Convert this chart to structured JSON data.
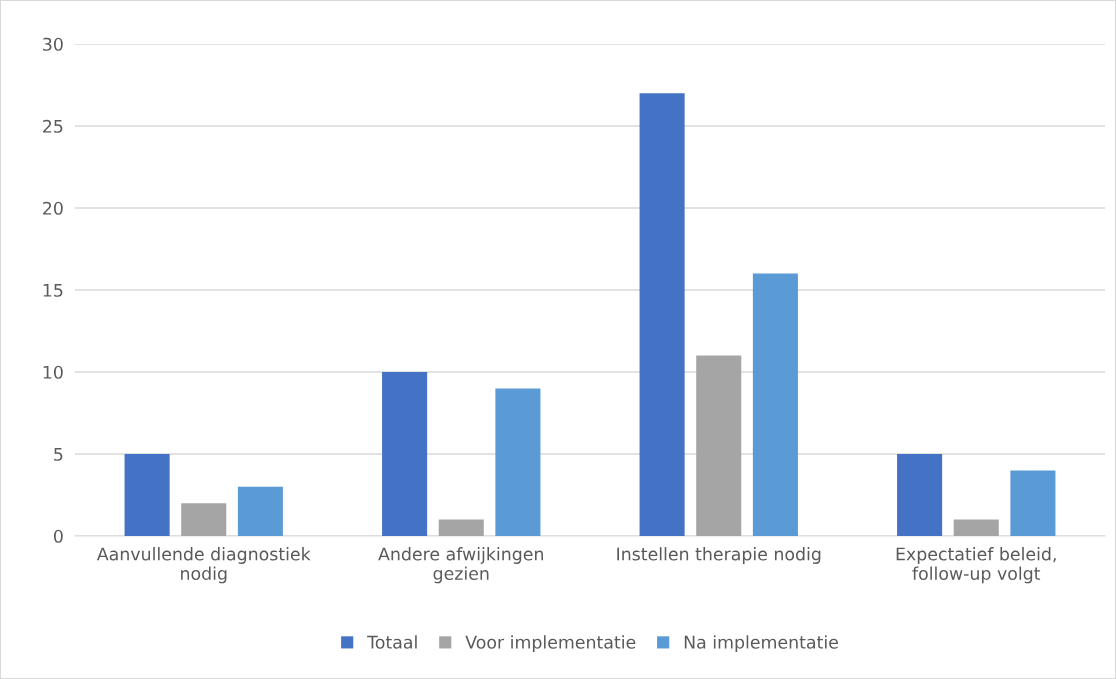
{
  "chart_data": {
    "type": "bar",
    "categories": [
      "Aanvullende diagnostiek nodig",
      "Andere afwijkingen gezien",
      "Instellen therapie nodig",
      "Expectatief beleid, follow-up volgt"
    ],
    "series": [
      {
        "name": "Totaal",
        "color": "#4472c4",
        "values": [
          5,
          10,
          27,
          5
        ]
      },
      {
        "name": "Voor implementatie",
        "color": "#a5a5a5",
        "values": [
          2,
          1,
          11,
          1
        ]
      },
      {
        "name": "Na implementatie",
        "color": "#5b9bd5",
        "values": [
          3,
          9,
          16,
          4
        ]
      }
    ],
    "ylim": [
      0,
      30
    ],
    "yticks": [
      0,
      5,
      10,
      15,
      20,
      25,
      30
    ],
    "grid": "y",
    "legend": "bottom"
  }
}
